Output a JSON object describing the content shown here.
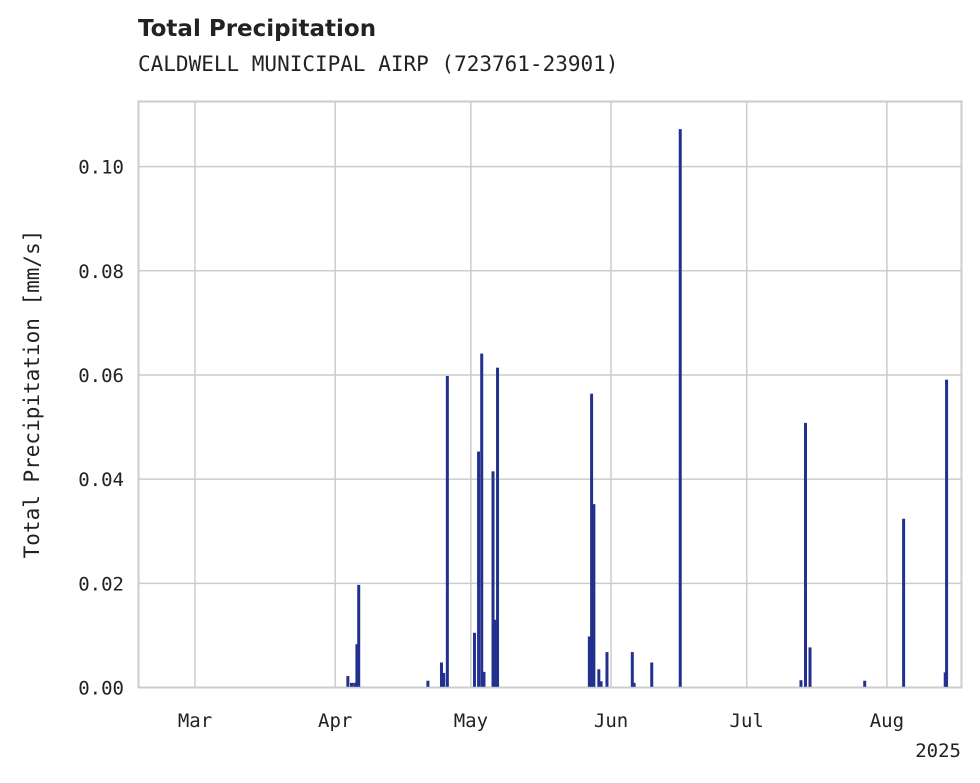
{
  "chart_data": {
    "type": "bar",
    "title": "Total Precipitation",
    "subtitle": "CALDWELL MUNICIPAL AIRP (723761-23901)",
    "xlabel": "",
    "ylabel": "Total Precipitation [mm/s]",
    "year_label": "2025",
    "x_range_days": [
      -12.5,
      169.5
    ],
    "ylim": [
      0,
      0.1125
    ],
    "y_ticks": [
      {
        "value": 0.0,
        "label": "0.00"
      },
      {
        "value": 0.02,
        "label": "0.02"
      },
      {
        "value": 0.04,
        "label": "0.04"
      },
      {
        "value": 0.06,
        "label": "0.06"
      },
      {
        "value": 0.08,
        "label": "0.08"
      },
      {
        "value": 0.1,
        "label": "0.10"
      }
    ],
    "x_ticks": [
      {
        "day": 0,
        "label": "Mar"
      },
      {
        "day": 31,
        "label": "Apr"
      },
      {
        "day": 61,
        "label": "May"
      },
      {
        "day": 92,
        "label": "Jun"
      },
      {
        "day": 122,
        "label": "Jul"
      },
      {
        "day": 153,
        "label": "Aug"
      }
    ],
    "grid": true,
    "series": [
      {
        "name": "Total Precipitation",
        "color": "#22318f",
        "points": [
          {
            "day": 33.8,
            "value": 0.0022
          },
          {
            "day": 34.6,
            "value": 0.0009
          },
          {
            "day": 35.3,
            "value": 0.0009
          },
          {
            "day": 35.8,
            "value": 0.0083
          },
          {
            "day": 36.2,
            "value": 0.0197
          },
          {
            "day": 51.5,
            "value": 0.0013
          },
          {
            "day": 54.5,
            "value": 0.0048
          },
          {
            "day": 55.0,
            "value": 0.0028
          },
          {
            "day": 55.8,
            "value": 0.0598
          },
          {
            "day": 61.8,
            "value": 0.0105
          },
          {
            "day": 62.7,
            "value": 0.0453
          },
          {
            "day": 63.4,
            "value": 0.0641
          },
          {
            "day": 63.9,
            "value": 0.003
          },
          {
            "day": 65.9,
            "value": 0.0415
          },
          {
            "day": 66.4,
            "value": 0.013
          },
          {
            "day": 66.9,
            "value": 0.0614
          },
          {
            "day": 87.2,
            "value": 0.0098
          },
          {
            "day": 87.7,
            "value": 0.0564
          },
          {
            "day": 88.2,
            "value": 0.0352
          },
          {
            "day": 89.3,
            "value": 0.0035
          },
          {
            "day": 89.8,
            "value": 0.0012
          },
          {
            "day": 91.1,
            "value": 0.0068
          },
          {
            "day": 96.7,
            "value": 0.0068
          },
          {
            "day": 97.1,
            "value": 0.0009
          },
          {
            "day": 101.0,
            "value": 0.0048
          },
          {
            "day": 107.3,
            "value": 0.1072
          },
          {
            "day": 134.0,
            "value": 0.0014
          },
          {
            "day": 135.0,
            "value": 0.0508
          },
          {
            "day": 136.0,
            "value": 0.0077
          },
          {
            "day": 148.1,
            "value": 0.0013
          },
          {
            "day": 156.7,
            "value": 0.0324
          },
          {
            "day": 165.9,
            "value": 0.0029
          },
          {
            "day": 166.2,
            "value": 0.0591
          }
        ]
      }
    ]
  }
}
